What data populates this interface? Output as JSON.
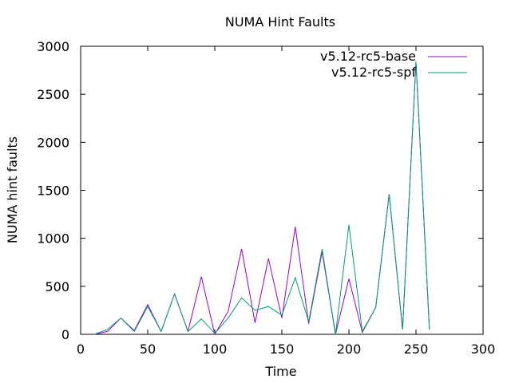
{
  "chart_data": {
    "type": "line",
    "title": "NUMA Hint Faults",
    "xlabel": "Time",
    "ylabel": "NUMA hint faults",
    "xlim": [
      0,
      300
    ],
    "ylim": [
      0,
      3000
    ],
    "xticks": [
      0,
      50,
      100,
      150,
      200,
      250,
      300
    ],
    "yticks": [
      0,
      500,
      1000,
      1500,
      2000,
      2500,
      3000
    ],
    "grid": false,
    "legend_position": "top-right",
    "series": [
      {
        "name": "v5.12-rc5-base",
        "color": "#9400d3",
        "points": [
          [
            10,
            0
          ],
          [
            20,
            30
          ],
          [
            30,
            170
          ],
          [
            40,
            40
          ],
          [
            50,
            310
          ],
          [
            60,
            30
          ],
          [
            70,
            420
          ],
          [
            80,
            30
          ],
          [
            90,
            600
          ],
          [
            100,
            0
          ],
          [
            110,
            240
          ],
          [
            120,
            890
          ],
          [
            130,
            120
          ],
          [
            140,
            790
          ],
          [
            150,
            170
          ],
          [
            160,
            1120
          ],
          [
            170,
            110
          ],
          [
            180,
            860
          ],
          [
            190,
            0
          ],
          [
            200,
            580
          ],
          [
            210,
            20
          ],
          [
            220,
            280
          ],
          [
            230,
            1460
          ],
          [
            240,
            50
          ],
          [
            250,
            2840
          ],
          [
            260,
            50
          ]
        ]
      },
      {
        "name": "v5.12-rc5-spf",
        "color": "#009e73",
        "points": [
          [
            10,
            0
          ],
          [
            20,
            50
          ],
          [
            30,
            170
          ],
          [
            40,
            30
          ],
          [
            50,
            290
          ],
          [
            60,
            30
          ],
          [
            70,
            420
          ],
          [
            80,
            30
          ],
          [
            90,
            160
          ],
          [
            100,
            10
          ],
          [
            110,
            170
          ],
          [
            120,
            380
          ],
          [
            130,
            250
          ],
          [
            140,
            290
          ],
          [
            150,
            200
          ],
          [
            160,
            590
          ],
          [
            170,
            130
          ],
          [
            180,
            890
          ],
          [
            190,
            0
          ],
          [
            200,
            1140
          ],
          [
            210,
            30
          ],
          [
            220,
            280
          ],
          [
            230,
            1460
          ],
          [
            240,
            50
          ],
          [
            250,
            2840
          ],
          [
            260,
            50
          ]
        ]
      }
    ]
  }
}
